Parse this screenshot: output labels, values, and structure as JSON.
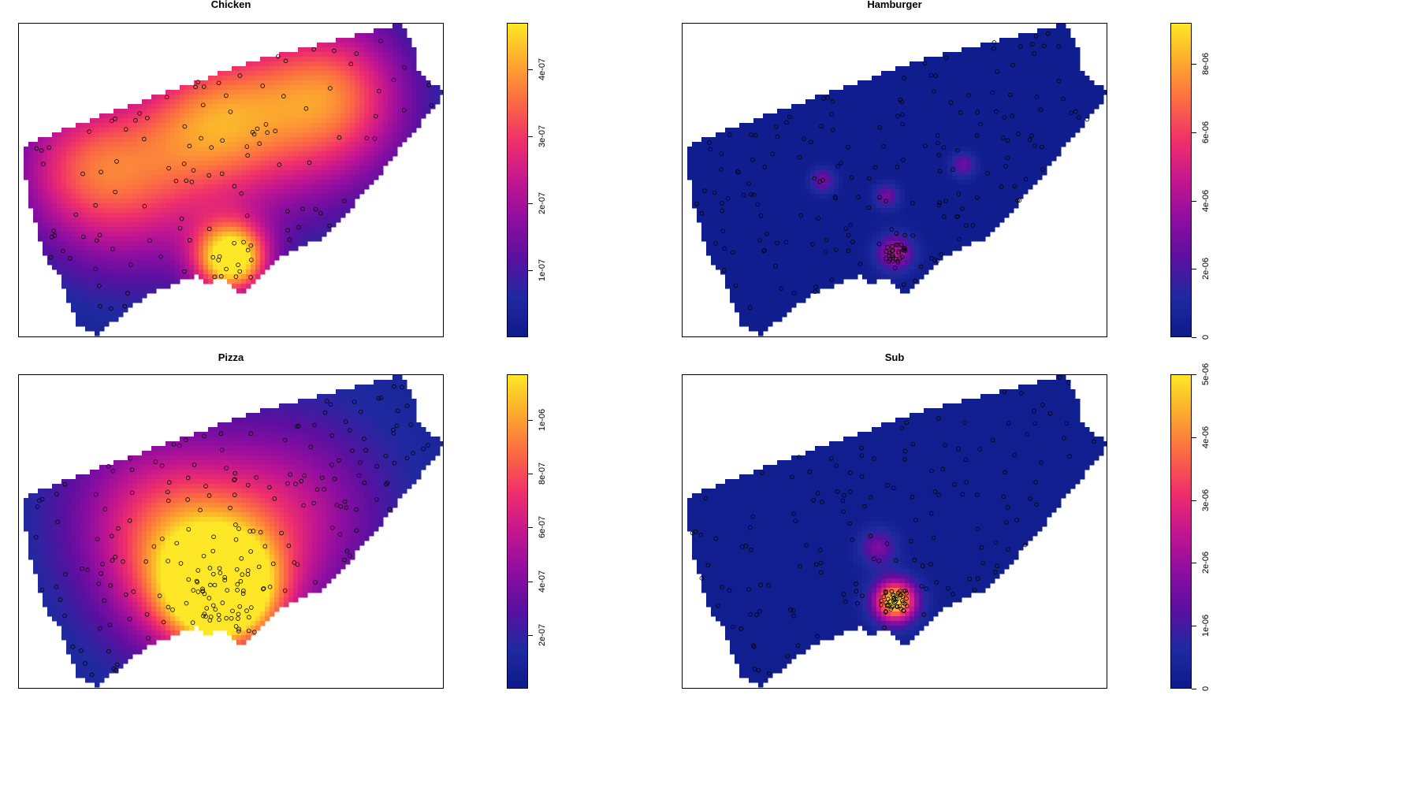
{
  "colors": {
    "palette": [
      "#0d1a8a",
      "#1f2aa0",
      "#5a0fa0",
      "#8f0ea0",
      "#c4168f",
      "#ef2f6b",
      "#fb6a43",
      "#fca82e",
      "#fde726"
    ],
    "point_stroke": "#000000",
    "border": "#000000"
  },
  "chart_data": [
    {
      "type": "heatmap",
      "subtype": "kernel-density-map-with-points",
      "title": "Chicken",
      "colorbar": {
        "min": 0,
        "max": 4.7e-07,
        "ticks": [
          "1e-07",
          "2e-07",
          "3e-07",
          "4e-07"
        ],
        "tick_values": [
          1e-07,
          2e-07,
          3e-07,
          4e-07
        ]
      },
      "hotspots": [
        {
          "x": 0.5,
          "y": 0.75,
          "level": 1.0,
          "spread": 0.06
        },
        {
          "x": 0.27,
          "y": 0.52,
          "level": 0.45,
          "spread": 0.16
        },
        {
          "x": 0.63,
          "y": 0.3,
          "level": 0.45,
          "spread": 0.18
        },
        {
          "x": 0.45,
          "y": 0.3,
          "level": 0.4,
          "spread": 0.12
        },
        {
          "x": 0.14,
          "y": 0.45,
          "level": 0.35,
          "spread": 0.12
        },
        {
          "x": 0.75,
          "y": 0.22,
          "level": 0.4,
          "spread": 0.12
        }
      ],
      "background_level": 0.05
    },
    {
      "type": "heatmap",
      "subtype": "kernel-density-map-with-points",
      "title": "Hamburger",
      "colorbar": {
        "min": 0,
        "max": 9.2e-06,
        "ticks": [
          "0",
          "2e-06",
          "4e-06",
          "6e-06",
          "8e-06"
        ],
        "tick_values": [
          0,
          2e-06,
          4e-06,
          6e-06,
          8e-06
        ]
      },
      "hotspots": [
        {
          "x": 0.5,
          "y": 0.73,
          "level": 0.45,
          "spread": 0.03
        },
        {
          "x": 0.33,
          "y": 0.5,
          "level": 0.3,
          "spread": 0.02
        },
        {
          "x": 0.66,
          "y": 0.45,
          "level": 0.28,
          "spread": 0.02
        },
        {
          "x": 0.48,
          "y": 0.55,
          "level": 0.3,
          "spread": 0.02
        }
      ],
      "background_level": 0.02
    },
    {
      "type": "heatmap",
      "subtype": "kernel-density-map-with-points",
      "title": "Pizza",
      "colorbar": {
        "min": 0,
        "max": 1.17e-06,
        "ticks": [
          "2e-07",
          "4e-07",
          "6e-07",
          "8e-07",
          "1e-06"
        ],
        "tick_values": [
          2e-07,
          4e-07,
          6e-07,
          8e-07,
          1e-06
        ]
      },
      "hotspots": [
        {
          "x": 0.48,
          "y": 0.7,
          "level": 1.0,
          "spread": 0.09
        },
        {
          "x": 0.4,
          "y": 0.62,
          "level": 0.55,
          "spread": 0.14
        },
        {
          "x": 0.62,
          "y": 0.45,
          "level": 0.4,
          "spread": 0.16
        },
        {
          "x": 0.3,
          "y": 0.4,
          "level": 0.3,
          "spread": 0.15
        }
      ],
      "background_level": 0.08
    },
    {
      "type": "heatmap",
      "subtype": "kernel-density-map-with-points",
      "title": "Sub",
      "colorbar": {
        "min": 0,
        "max": 5e-06,
        "ticks": [
          "0",
          "1e-06",
          "2e-06",
          "3e-06",
          "4e-06",
          "5e-06"
        ],
        "tick_values": [
          0,
          1e-06,
          2e-06,
          3e-06,
          4e-06,
          5e-06
        ]
      },
      "hotspots": [
        {
          "x": 0.5,
          "y": 0.72,
          "level": 1.0,
          "spread": 0.035
        },
        {
          "x": 0.46,
          "y": 0.55,
          "level": 0.3,
          "spread": 0.03
        }
      ],
      "background_level": 0.03
    }
  ]
}
